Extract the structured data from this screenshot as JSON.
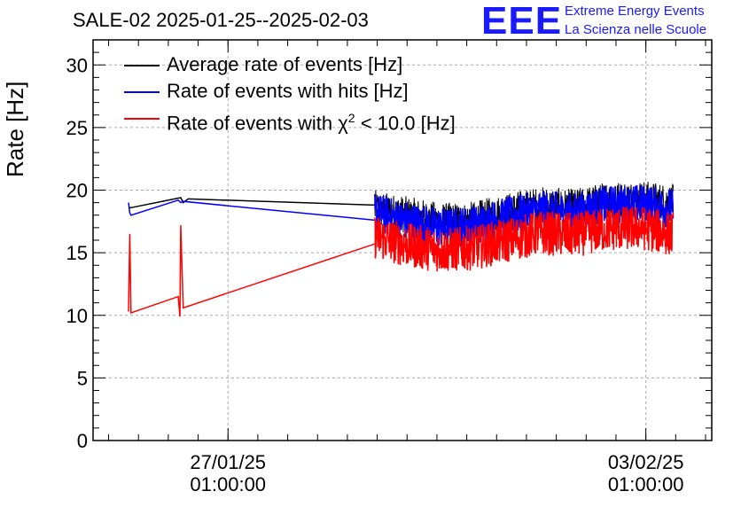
{
  "title": "SALE-02 2025-01-25--2025-02-03",
  "logo": {
    "text": "EEE",
    "line1": "Extreme Energy Events",
    "line2": "La Scienza nelle Scuole",
    "color": "#1a1aff"
  },
  "chart_data": {
    "type": "line",
    "title": "SALE-02 2025-01-25--2025-02-03",
    "ylabel": "Rate [Hz]",
    "xlabel": "",
    "ylim": [
      0,
      32
    ],
    "y_ticks": [
      0,
      5,
      10,
      15,
      20,
      25,
      30
    ],
    "xlim": [
      "2025-01-24 18:45:00",
      "2025-02-04 03:30:00"
    ],
    "x_ticks": [
      {
        "label": [
          "27/01/25",
          "01:00:00"
        ],
        "at": "2025-01-27 01:00:00"
      },
      {
        "label": [
          "03/02/25",
          "01:00:00"
        ],
        "at": "2025-02-03 01:00:00"
      }
    ],
    "grid": true,
    "legend_position": "top-left",
    "series": [
      {
        "name": "Average rate of events [Hz]",
        "color": "#000000",
        "segments": [
          {
            "x": [
              "2025-01-25 09:00",
              "2025-01-25 10:00",
              "2025-01-26 06:00",
              "2025-01-26 07:00",
              "2025-01-26 09:00",
              "2025-01-29 12:00"
            ],
            "y": [
              18.6,
              18.6,
              19.4,
              19.0,
              19.3,
              18.8
            ]
          },
          {
            "x_range": [
              "2025-01-29 12:00",
              "2025-02-03 12:00"
            ],
            "trend": [
              18.5,
              18.0,
              17.5,
              17.6,
              18.3,
              18.8,
              18.6,
              19.2,
              19.3,
              19.0
            ],
            "noise": 1.5
          }
        ]
      },
      {
        "name": "Rate of events with hits [Hz]",
        "color": "#0000ff",
        "segments": [
          {
            "x": [
              "2025-01-25 09:00",
              "2025-01-25 09:30",
              "2025-01-25 10:00",
              "2025-01-26 05:00",
              "2025-01-26 06:00",
              "2025-01-26 07:00",
              "2025-01-29 12:00"
            ],
            "y": [
              19.0,
              18.2,
              18.0,
              19.2,
              19.0,
              19.1,
              17.6
            ]
          },
          {
            "x_range": [
              "2025-01-29 12:00",
              "2025-02-03 12:00"
            ],
            "trend": [
              18.2,
              17.5,
              17.0,
              17.2,
              17.9,
              18.4,
              18.2,
              18.8,
              18.9,
              18.5
            ],
            "noise": 1.6
          }
        ]
      },
      {
        "name": "Rate of events with χ² < 10.0 [Hz]",
        "color": "#ff0000",
        "segments": [
          {
            "x": [
              "2025-01-25 09:00",
              "2025-01-25 09:30",
              "2025-01-25 10:00",
              "2025-01-26 05:00",
              "2025-01-26 05:40",
              "2025-01-26 06:00",
              "2025-01-26 07:00",
              "2025-01-29 12:00"
            ],
            "y": [
              10.3,
              16.5,
              10.2,
              11.5,
              9.9,
              17.2,
              10.6,
              15.7
            ]
          },
          {
            "x_range": [
              "2025-01-29 12:00",
              "2025-02-03 12:00"
            ],
            "trend": [
              16.3,
              15.6,
              15.2,
              15.4,
              16.0,
              16.6,
              16.4,
              16.9,
              17.0,
              16.5
            ],
            "noise": 1.8
          }
        ]
      }
    ]
  },
  "legend": [
    {
      "label_main": "Rate of events with ",
      "label_sym": "χ",
      "label_sup": "2",
      "label_tail": " < 10.0 [Hz]"
    }
  ]
}
